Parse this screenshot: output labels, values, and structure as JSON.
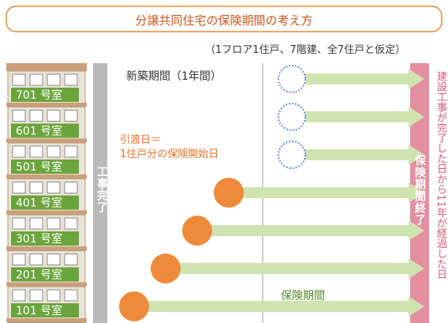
{
  "header": {
    "title": "分譲共同住宅の保険期間の考え方",
    "note": "（1フロア1住戸、7階建、全7住戸と仮定）"
  },
  "floors": [
    "701 号室",
    "601 号室",
    "501 号室",
    "401 号室",
    "301 号室",
    "201 号室",
    "101 号室"
  ],
  "labels": {
    "completion": "工事完了",
    "new_period": "新築期間（1年間）",
    "handover_1": "引渡日＝",
    "handover_2": "1住戸分の保険開始日",
    "insurance_period": "保険期間",
    "insurance_end": "保険期間終了",
    "end_note": "建設工事が完了した日から11年が経過した日"
  }
}
